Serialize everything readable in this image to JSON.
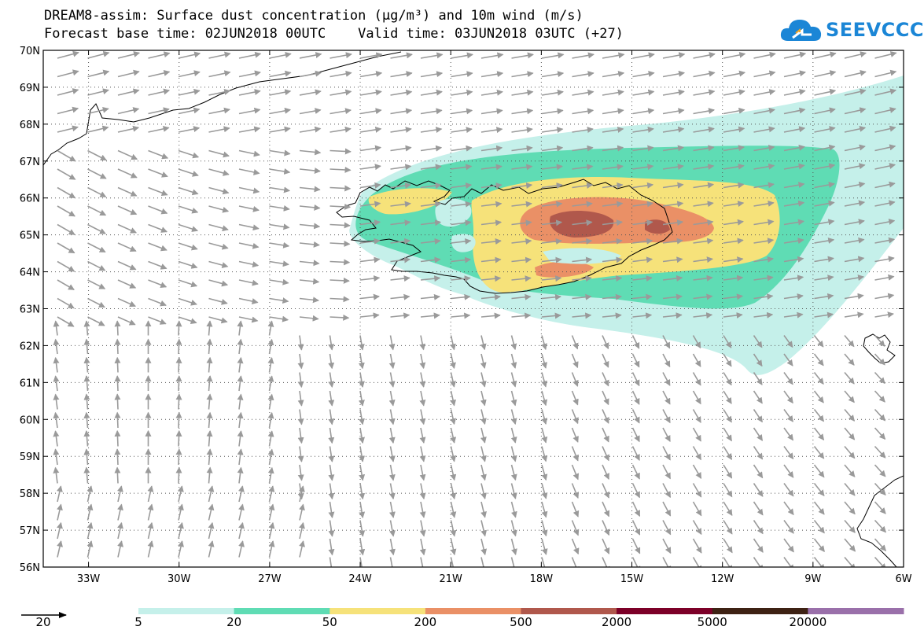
{
  "title_line1": "DREAM8-assim: Surface dust concentration (μg/m³) and 10m wind (m/s)",
  "title_line2": "Forecast base time: 02JUN2018 00UTC    Valid time: 03JUN2018 03UTC (+27)",
  "logo": {
    "text": "SEEVCCC",
    "color": "#1b86d6"
  },
  "axes": {
    "lon_range": [
      -34.5,
      -6
    ],
    "lat_range": [
      56,
      70
    ],
    "lon_ticks": [
      "33W",
      "30W",
      "27W",
      "24W",
      "21W",
      "18W",
      "15W",
      "12W",
      "9W",
      "6W"
    ],
    "lat_ticks": [
      "70N",
      "69N",
      "68N",
      "67N",
      "66N",
      "65N",
      "64N",
      "63N",
      "62N",
      "61N",
      "60N",
      "59N",
      "58N",
      "57N",
      "56N"
    ],
    "gridlines": "dotted"
  },
  "legend": {
    "wind_reference": "20",
    "levels": [
      "5",
      "20",
      "50",
      "200",
      "500",
      "2000",
      "5000",
      "20000"
    ],
    "colors": [
      "#c5f0ea",
      "#5fdcb4",
      "#f6e27a",
      "#ea9066",
      "#b0584c",
      "#7c0028",
      "#3e2214",
      "#9a70aa"
    ]
  }
}
